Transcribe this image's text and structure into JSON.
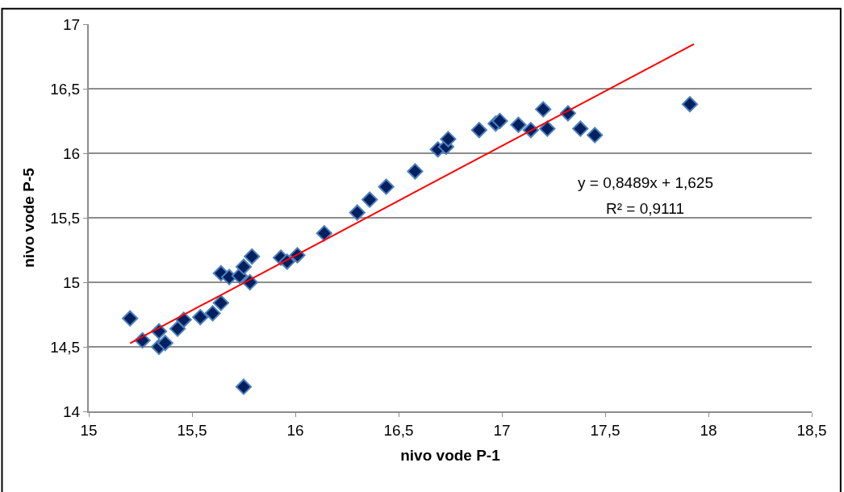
{
  "chart_data": {
    "type": "scatter",
    "xlabel": "nivo vode P-1",
    "ylabel": "nivo vode P-5",
    "xlim": [
      15,
      18.5
    ],
    "xticks": [
      15,
      {
        "value": 15.5,
        "label": "15,5"
      },
      16,
      {
        "value": 16.5,
        "label": "16,5"
      },
      17,
      {
        "value": 17.5,
        "label": "17,5"
      },
      18,
      {
        "value": 18.5,
        "label": "18,5"
      }
    ],
    "ylim": [
      14,
      17
    ],
    "yticks": [
      14,
      {
        "value": 14.5,
        "label": "14,5"
      },
      15,
      {
        "value": 15.5,
        "label": "15,5"
      },
      16,
      {
        "value": 16.5,
        "label": "16,5"
      },
      17
    ],
    "grid": "y",
    "marker": "diamond",
    "annotations": [
      "y = 0,8489x + 1,625",
      "R² = 0,9111"
    ],
    "series": [
      {
        "color": "#002060",
        "x": [
          15.2,
          15.26,
          15.34,
          15.34,
          15.37,
          15.43,
          15.46,
          15.54,
          15.6,
          15.64,
          15.64,
          15.68,
          15.73,
          15.75,
          15.78,
          15.79,
          15.75,
          15.93,
          15.96,
          16.01,
          16.14,
          16.3,
          16.36,
          16.44,
          16.58,
          16.69,
          16.73,
          16.74,
          16.89,
          16.97,
          16.99,
          17.08,
          17.14,
          17.2,
          17.22,
          17.32,
          17.38,
          17.45,
          17.91
        ],
        "values": [
          14.72,
          14.55,
          14.62,
          14.5,
          14.53,
          14.64,
          14.71,
          14.73,
          14.76,
          14.84,
          15.07,
          15.04,
          15.05,
          15.12,
          15.0,
          15.2,
          14.19,
          15.19,
          15.16,
          15.21,
          15.38,
          15.54,
          15.64,
          15.74,
          15.86,
          16.03,
          16.05,
          16.11,
          16.18,
          16.23,
          16.25,
          16.22,
          16.18,
          16.34,
          16.19,
          16.31,
          16.19,
          16.14,
          16.38
        ]
      },
      {
        "type": "line",
        "color": "#ff0000",
        "marker": "none",
        "x": [
          15.2,
          17.93
        ],
        "values": [
          14.528,
          16.846
        ]
      }
    ]
  }
}
